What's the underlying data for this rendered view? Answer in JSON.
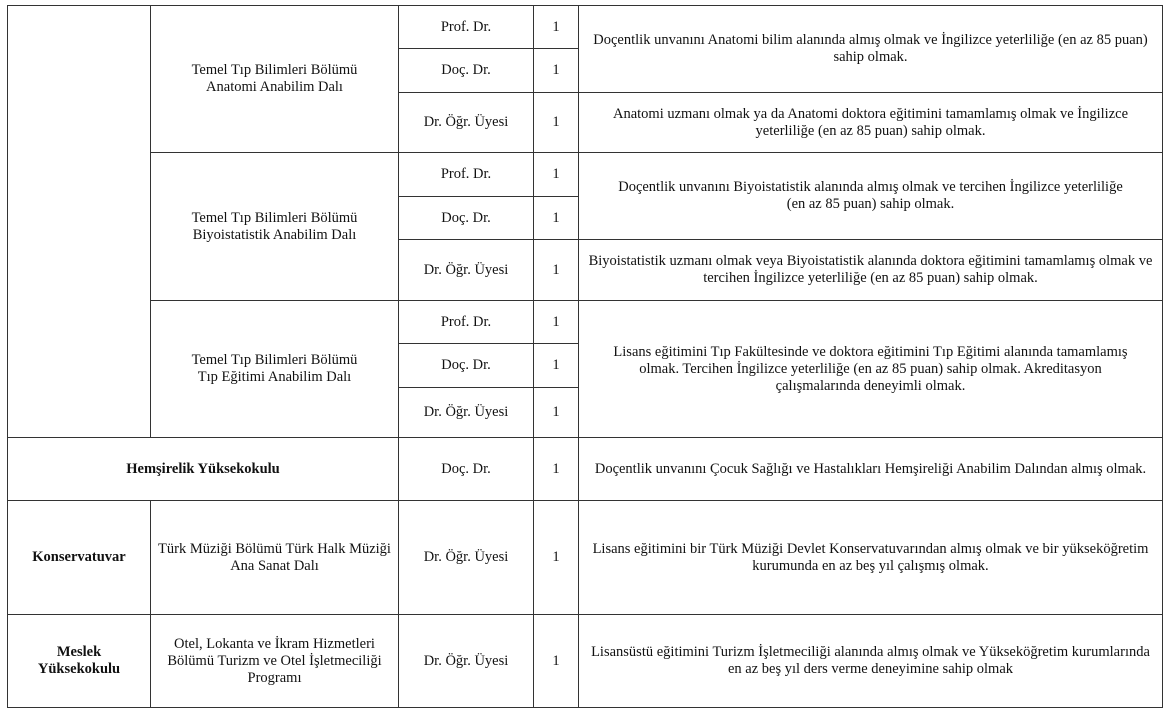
{
  "rows": {
    "anatomi": {
      "unit": "Temel Tıp Bilimleri Bölümü Anatomi Anabilim Dalı",
      "titles": [
        "Prof. Dr.",
        "Doç. Dr.",
        "Dr. Öğr. Üyesi"
      ],
      "counts": [
        "1",
        "1",
        "1"
      ],
      "req_senior": "Doçentlik unvanını Anatomi bilim alanında almış olmak ve İngilizce yeterliliğe (en az 85 puan) sahip olmak.",
      "req_junior": "Anatomi uzmanı olmak ya da Anatomi doktora eğitimini tamamlamış olmak ve İngilizce yeterliliğe (en az 85 puan) sahip olmak."
    },
    "biyoistatistik": {
      "unit": "Temel Tıp Bilimleri Bölümü Biyoistatistik Anabilim Dalı",
      "titles": [
        "Prof. Dr.",
        "Doç. Dr.",
        "Dr. Öğr. Üyesi"
      ],
      "counts": [
        "1",
        "1",
        "1"
      ],
      "req_senior": "Doçentlik unvanını Biyoistatistik alanında almış olmak ve tercihen İngilizce yeterliliğe (en az 85 puan) sahip olmak.",
      "req_junior": "Biyoistatistik uzmanı olmak veya Biyoistatistik alanında doktora eğitimini tamamlamış olmak ve tercihen İngilizce yeterliliğe (en az 85 puan) sahip olmak."
    },
    "tip_egitimi": {
      "unit": "Temel Tıp Bilimleri Bölümü Tıp Eğitimi Anabilim Dalı",
      "titles": [
        "Prof. Dr.",
        "Doç. Dr.",
        "Dr. Öğr. Üyesi"
      ],
      "counts": [
        "1",
        "1",
        "1"
      ],
      "req": "Lisans eğitimini Tıp Fakültesinde ve doktora eğitimini Tıp Eğitimi alanında tamamlamış olmak. Tercihen İngilizce yeterliliğe (en az 85 puan) sahip olmak. Akreditasyon çalışmalarında deneyimli olmak."
    },
    "hemsirelik": {
      "faculty": "Hemşirelik Yüksekokulu",
      "title": "Doç. Dr.",
      "count": "1",
      "req": "Doçentlik unvanını Çocuk Sağlığı ve Hastalıkları Hemşireliği Anabilim Dalından almış olmak."
    },
    "konservatuvar": {
      "faculty": "Konservatuvar",
      "unit": "Türk Müziği Bölümü Türk Halk Müziği Ana Sanat Dalı",
      "title": "Dr. Öğr. Üyesi",
      "count": "1",
      "req": "Lisans eğitimini bir Türk Müziği Devlet Konservatuvarından almış olmak ve bir yükseköğretim kurumunda en az beş yıl çalışmış olmak."
    },
    "meslek": {
      "faculty": "Meslek Yüksekokulu",
      "unit": "Otel, Lokanta ve İkram Hizmetleri Bölümü Turizm ve Otel İşletmeciliği Programı",
      "title": "Dr. Öğr. Üyesi",
      "count": "1",
      "req": "Lisansüstü eğitimini Turizm İşletmeciliği alanında almış olmak ve Yükseköğretim kurumlarında en az beş yıl ders verme deneyimine sahip olmak"
    }
  }
}
